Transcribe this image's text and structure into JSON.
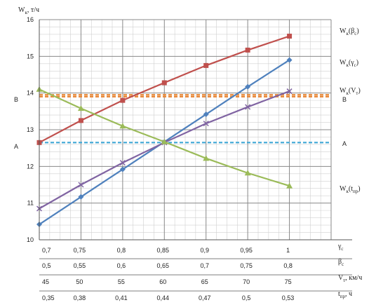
{
  "chart_data": {
    "type": "line",
    "ylabel": {
      "main": "W",
      "sub": "к",
      "unit": ", т/ч"
    },
    "ylim": [
      10,
      16
    ],
    "yticks": [
      "10",
      "11",
      "12",
      "13",
      "14",
      "15",
      "16"
    ],
    "grid": true,
    "x_positions": [
      0,
      1,
      2,
      3,
      4,
      5,
      6
    ],
    "x_axes": [
      {
        "id": "gamma",
        "label": "γ",
        "label_sub": "c",
        "unit": "",
        "ticks": [
          "0,7",
          "0,75",
          "0,8",
          "0,85",
          "0,9",
          "0,95",
          "1"
        ]
      },
      {
        "id": "beta",
        "label": "β",
        "label_sub": "c",
        "unit": "",
        "ticks": [
          "0,5",
          "0,55",
          "0,6",
          "0,65",
          "0,7",
          "0,75",
          "0,8"
        ]
      },
      {
        "id": "speed",
        "label": "V",
        "label_sub": "т",
        "unit": ", км/ч",
        "ticks": [
          "45",
          "50",
          "55",
          "60",
          "65",
          "70",
          "75"
        ]
      },
      {
        "id": "tpr",
        "label": "t",
        "label_sub": "пр",
        "unit": ", ч",
        "ticks": [
          "0,35",
          "0,38",
          "0,41",
          "0,44",
          "0,47",
          "0,5",
          "0,53"
        ]
      }
    ],
    "series": [
      {
        "name": "W",
        "name_sub": "к",
        "param": "β",
        "param_sub": "c",
        "color": "#c0504d",
        "marker": "square",
        "values": [
          12.65,
          13.25,
          13.8,
          14.28,
          14.75,
          15.17,
          15.55
        ]
      },
      {
        "name": "W",
        "name_sub": "к",
        "param": "γ",
        "param_sub": "c",
        "color": "#4f81bd",
        "marker": "diamond",
        "values": [
          10.42,
          11.17,
          11.92,
          12.67,
          13.42,
          14.17,
          14.9
        ]
      },
      {
        "name": "W",
        "name_sub": "к",
        "param": "V",
        "param_sub": "т",
        "color": "#8064a2",
        "marker": "x",
        "values": [
          10.85,
          11.5,
          12.1,
          12.65,
          13.17,
          13.62,
          14.05
        ]
      },
      {
        "name": "W",
        "name_sub": "к",
        "param": "t",
        "param_sub": "пр",
        "color": "#9bbb59",
        "marker": "triangle",
        "values": [
          14.1,
          13.58,
          13.1,
          12.67,
          12.22,
          11.82,
          11.47
        ]
      }
    ],
    "reference_lines": [
      {
        "label": "B",
        "value": 13.9,
        "color": "#e8893a"
      },
      {
        "label": "B",
        "value": 13.95,
        "color": "#e8893a"
      },
      {
        "label": "A",
        "value": 12.65,
        "color": "#3fa7d6"
      }
    ],
    "side_labels": {
      "left_upper": "B",
      "left_lower": "A",
      "right_upper": "B",
      "right_lower": "A"
    }
  }
}
